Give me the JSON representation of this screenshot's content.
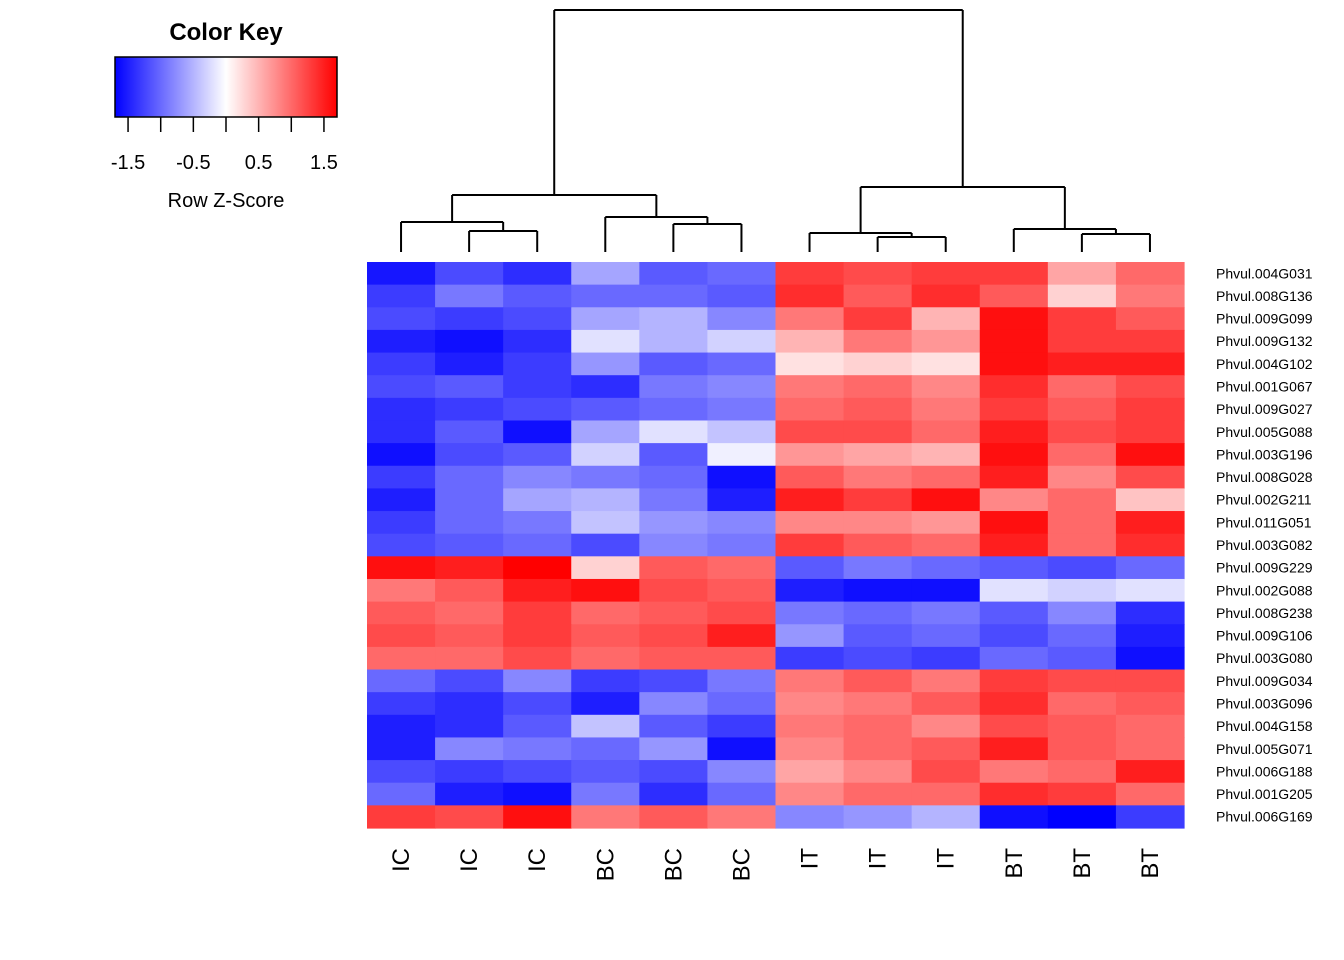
{
  "chart_data": {
    "type": "heatmap",
    "title": "",
    "color_key": {
      "title": "Color Key",
      "label": "Row Z-Score",
      "ticks": [
        "-1.5",
        "-0.5",
        "0.5",
        "1.5"
      ],
      "range": [
        -1.7,
        1.7
      ],
      "colors": {
        "low": "#0000ff",
        "mid": "#ffffff",
        "high": "#ff0000"
      }
    },
    "columns": [
      "IC",
      "IC",
      "IC",
      "BC",
      "BC",
      "BC",
      "IT",
      "IT",
      "IT",
      "BT",
      "BT",
      "BT"
    ],
    "row_labels": [
      "Phvul.004G031",
      "Phvul.008G136",
      "Phvul.009G099",
      "Phvul.009G132",
      "Phvul.004G102",
      "Phvul.001G067",
      "Phvul.009G027",
      "Phvul.005G088",
      "Phvul.003G196",
      "Phvul.008G028",
      "Phvul.002G211",
      "Phvul.011G051",
      "Phvul.003G082",
      "Phvul.009G229",
      "Phvul.002G088",
      "Phvul.008G238",
      "Phvul.009G106",
      "Phvul.003G080",
      "Phvul.009G034",
      "Phvul.003G096",
      "Phvul.004G158",
      "Phvul.005G071",
      "Phvul.006G188",
      "Phvul.001G205",
      "Phvul.006G169"
    ],
    "values": [
      [
        -1.55,
        -1.2,
        -1.4,
        -0.6,
        -1.1,
        -1.0,
        1.3,
        1.2,
        1.3,
        1.3,
        0.6,
        1.0
      ],
      [
        -1.3,
        -0.9,
        -1.1,
        -1.0,
        -1.0,
        -1.1,
        1.4,
        1.1,
        1.4,
        1.1,
        0.3,
        0.9
      ],
      [
        -1.2,
        -1.3,
        -1.2,
        -0.6,
        -0.5,
        -0.8,
        0.9,
        1.3,
        0.5,
        1.6,
        1.3,
        1.1
      ],
      [
        -1.5,
        -1.6,
        -1.4,
        -0.2,
        -0.5,
        -0.3,
        0.5,
        0.9,
        0.7,
        1.6,
        1.3,
        1.3
      ],
      [
        -1.3,
        -1.5,
        -1.3,
        -0.7,
        -1.1,
        -1.0,
        0.2,
        0.3,
        0.2,
        1.6,
        1.5,
        1.5
      ],
      [
        -1.2,
        -1.1,
        -1.3,
        -1.4,
        -0.9,
        -0.8,
        0.9,
        1.0,
        0.8,
        1.4,
        1.0,
        1.2
      ],
      [
        -1.4,
        -1.3,
        -1.2,
        -1.1,
        -1.0,
        -0.9,
        1.0,
        1.1,
        0.9,
        1.3,
        1.1,
        1.3
      ],
      [
        -1.4,
        -1.1,
        -1.6,
        -0.6,
        -0.2,
        -0.4,
        1.2,
        1.2,
        1.0,
        1.5,
        1.2,
        1.3
      ],
      [
        -1.6,
        -1.2,
        -1.1,
        -0.3,
        -1.1,
        -0.1,
        0.7,
        0.6,
        0.5,
        1.6,
        1.0,
        1.6
      ],
      [
        -1.3,
        -1.0,
        -0.8,
        -0.9,
        -1.0,
        -1.6,
        1.1,
        0.9,
        1.0,
        1.5,
        0.8,
        1.2
      ],
      [
        -1.5,
        -1.0,
        -0.6,
        -0.5,
        -0.9,
        -1.5,
        1.5,
        1.3,
        1.6,
        0.8,
        1.0,
        0.4
      ],
      [
        -1.3,
        -1.0,
        -0.9,
        -0.4,
        -0.7,
        -0.8,
        0.8,
        0.8,
        0.7,
        1.6,
        1.0,
        1.5
      ],
      [
        -1.2,
        -1.1,
        -1.0,
        -1.2,
        -0.8,
        -0.9,
        1.3,
        1.1,
        1.0,
        1.5,
        1.0,
        1.4
      ],
      [
        1.6,
        1.5,
        1.7,
        0.3,
        1.1,
        1.0,
        -1.1,
        -0.9,
        -1.0,
        -1.1,
        -1.2,
        -1.0
      ],
      [
        0.9,
        1.1,
        1.5,
        1.6,
        1.2,
        1.1,
        -1.5,
        -1.6,
        -1.6,
        -0.2,
        -0.3,
        -0.2
      ],
      [
        1.1,
        1.0,
        1.3,
        1.0,
        1.1,
        1.2,
        -0.9,
        -1.0,
        -0.9,
        -1.1,
        -0.8,
        -1.4
      ],
      [
        1.2,
        1.1,
        1.3,
        1.1,
        1.2,
        1.5,
        -0.7,
        -1.1,
        -1.0,
        -1.2,
        -1.0,
        -1.5
      ],
      [
        1.0,
        1.0,
        1.2,
        1.0,
        1.1,
        1.1,
        -1.3,
        -1.2,
        -1.3,
        -1.0,
        -1.1,
        -1.6
      ],
      [
        -1.0,
        -1.2,
        -0.8,
        -1.3,
        -1.2,
        -0.9,
        0.9,
        1.1,
        0.9,
        1.3,
        1.2,
        1.2
      ],
      [
        -1.3,
        -1.4,
        -1.2,
        -1.5,
        -0.8,
        -1.0,
        0.8,
        0.9,
        1.1,
        1.4,
        1.0,
        1.1
      ],
      [
        -1.5,
        -1.4,
        -1.1,
        -0.4,
        -1.1,
        -1.3,
        0.9,
        1.0,
        0.8,
        1.2,
        1.1,
        1.0
      ],
      [
        -1.5,
        -0.8,
        -0.9,
        -1.0,
        -0.7,
        -1.6,
        0.8,
        1.0,
        1.1,
        1.5,
        1.1,
        1.0
      ],
      [
        -1.2,
        -1.3,
        -1.2,
        -1.1,
        -1.2,
        -0.8,
        0.6,
        0.8,
        1.2,
        0.9,
        1.0,
        1.5
      ],
      [
        -1.0,
        -1.5,
        -1.6,
        -0.9,
        -1.4,
        -1.0,
        0.8,
        1.0,
        1.0,
        1.4,
        1.3,
        1.0
      ],
      [
        1.3,
        1.2,
        1.6,
        0.9,
        1.1,
        0.9,
        -0.8,
        -0.7,
        -0.5,
        -1.6,
        -1.7,
        -1.3
      ]
    ]
  }
}
